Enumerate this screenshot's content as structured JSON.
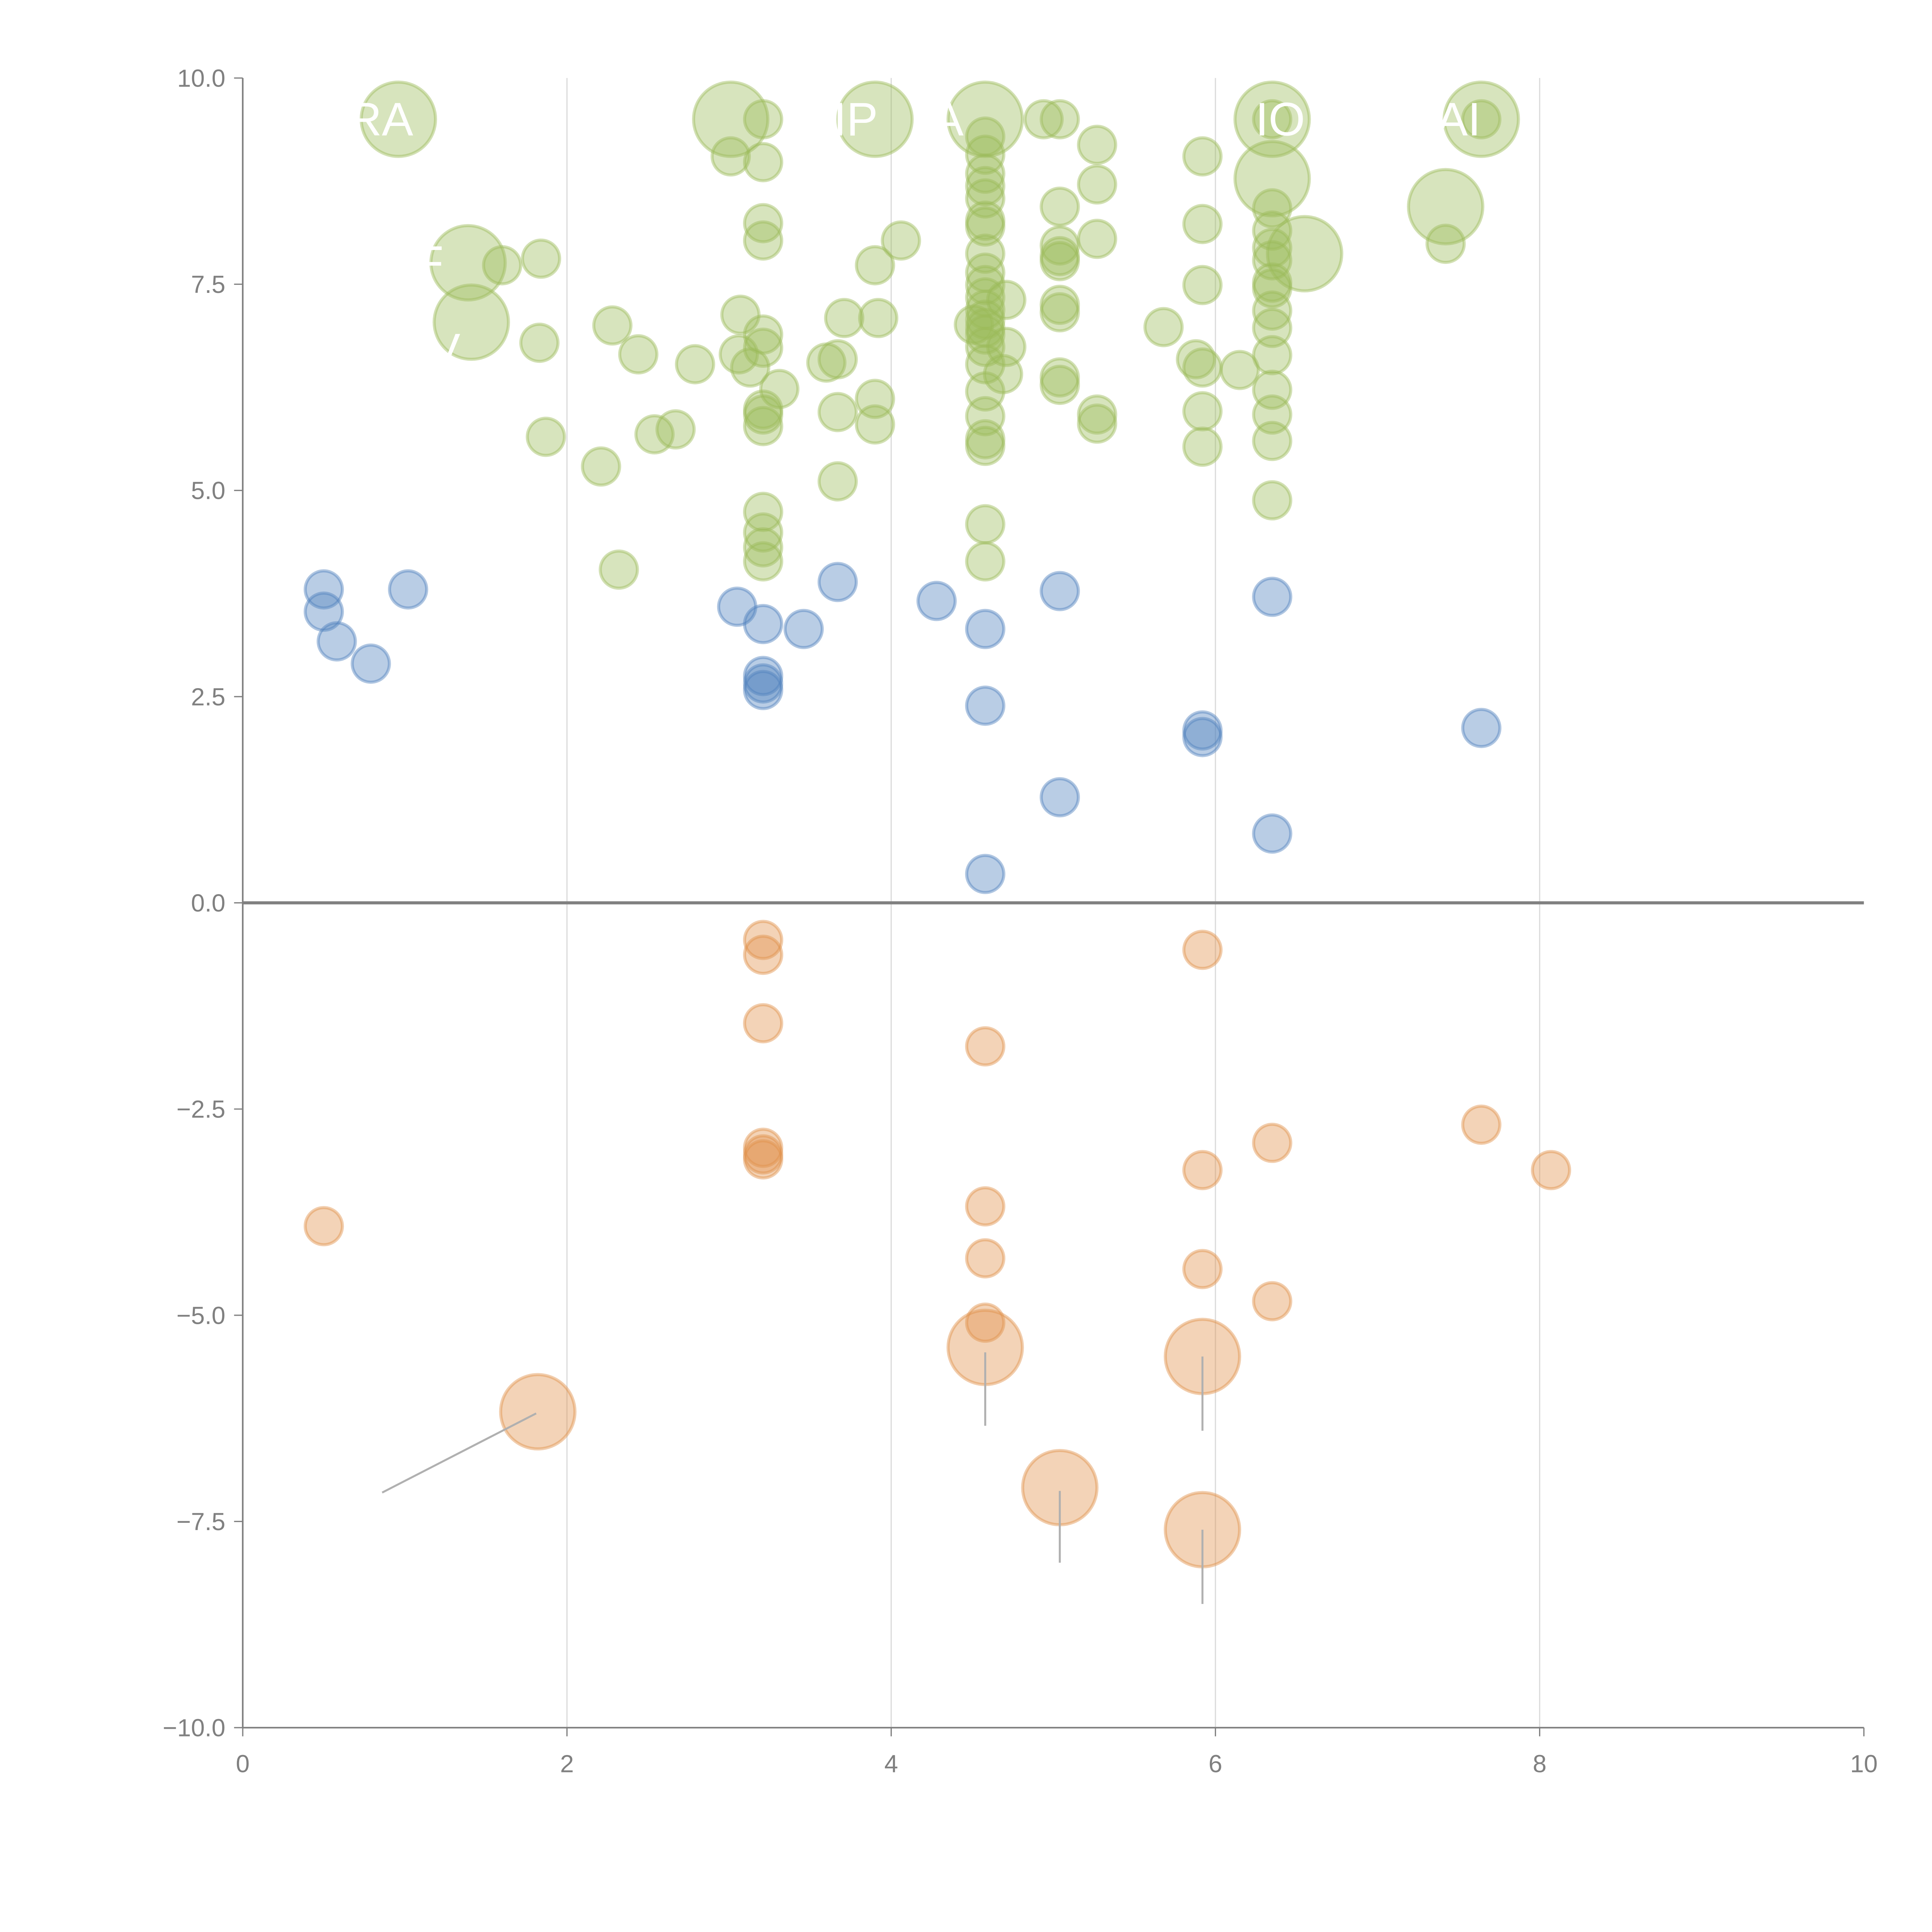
{
  "chart_data": {
    "type": "scatter",
    "title": "",
    "xlabel": "",
    "ylabel": "",
    "xlim": [
      0,
      10
    ],
    "ylim": [
      -10,
      10
    ],
    "xticks": [
      "0",
      "2",
      "4",
      "6",
      "8",
      "10"
    ],
    "yticks": [
      "10.0",
      "7.5",
      "5.0",
      "2.5",
      "0.0",
      "−2.5",
      "−5.0",
      "−7.5",
      "−10.0"
    ],
    "grid": "vertical",
    "colors": {
      "green": "#9bbb59",
      "blue": "#4f81bd",
      "orange": "#e0904a"
    },
    "series": [
      {
        "name": "green",
        "points": [
          [
            0.96,
            9.5,
            4
          ],
          [
            1.39,
            7.76,
            4
          ],
          [
            1.41,
            7.04,
            4
          ],
          [
            3.01,
            9.5,
            4
          ],
          [
            3.9,
            9.5,
            4
          ],
          [
            4.58,
            9.5,
            4
          ],
          [
            6.35,
            9.5,
            4
          ],
          [
            6.35,
            8.78,
            4
          ],
          [
            6.55,
            7.87,
            4
          ],
          [
            7.42,
            8.44,
            4
          ],
          [
            7.64,
            9.5,
            4
          ],
          [
            1.6,
            7.73,
            1
          ],
          [
            1.84,
            7.81,
            1
          ],
          [
            1.83,
            6.79,
            1
          ],
          [
            1.87,
            5.65,
            1
          ],
          [
            2.21,
            5.29,
            1
          ],
          [
            2.28,
            7.0,
            1
          ],
          [
            2.32,
            4.04,
            1
          ],
          [
            2.44,
            6.65,
            1
          ],
          [
            2.54,
            5.68,
            1
          ],
          [
            2.67,
            5.74,
            1
          ],
          [
            2.79,
            6.53,
            1
          ],
          [
            3.01,
            9.05,
            1
          ],
          [
            3.07,
            7.13,
            1
          ],
          [
            3.06,
            6.65,
            1
          ],
          [
            3.13,
            6.49,
            1
          ],
          [
            3.21,
            9.5,
            1
          ],
          [
            3.21,
            8.98,
            1
          ],
          [
            3.21,
            8.24,
            1
          ],
          [
            3.21,
            8.03,
            1
          ],
          [
            3.21,
            6.89,
            1
          ],
          [
            3.21,
            6.73,
            1
          ],
          [
            3.21,
            5.98,
            1
          ],
          [
            3.21,
            5.92,
            1
          ],
          [
            3.21,
            5.78,
            1
          ],
          [
            3.21,
            4.74,
            1
          ],
          [
            3.21,
            4.49,
            1
          ],
          [
            3.21,
            4.31,
            1
          ],
          [
            3.21,
            4.14,
            1
          ],
          [
            3.31,
            6.23,
            1
          ],
          [
            3.6,
            6.55,
            1
          ],
          [
            3.67,
            6.59,
            1
          ],
          [
            3.67,
            5.95,
            1
          ],
          [
            3.67,
            5.11,
            1
          ],
          [
            3.71,
            7.09,
            1
          ],
          [
            3.9,
            7.73,
            1
          ],
          [
            3.9,
            6.11,
            1
          ],
          [
            3.9,
            5.8,
            1
          ],
          [
            3.92,
            7.09,
            1
          ],
          [
            4.06,
            8.03,
            1
          ],
          [
            4.51,
            7.01,
            1
          ],
          [
            4.58,
            9.29,
            1
          ],
          [
            4.58,
            9.07,
            1
          ],
          [
            4.58,
            8.84,
            1
          ],
          [
            4.58,
            8.69,
            1
          ],
          [
            4.58,
            8.54,
            1
          ],
          [
            4.58,
            8.27,
            1
          ],
          [
            4.58,
            8.2,
            1
          ],
          [
            4.58,
            7.87,
            1
          ],
          [
            4.58,
            7.64,
            1
          ],
          [
            4.58,
            7.49,
            1
          ],
          [
            4.58,
            7.34,
            1
          ],
          [
            4.58,
            7.19,
            1
          ],
          [
            4.58,
            7.07,
            1
          ],
          [
            4.58,
            6.97,
            1
          ],
          [
            4.58,
            6.89,
            1
          ],
          [
            4.58,
            6.74,
            1
          ],
          [
            4.58,
            6.53,
            1
          ],
          [
            4.58,
            6.2,
            1
          ],
          [
            4.58,
            5.9,
            1
          ],
          [
            4.58,
            5.62,
            1
          ],
          [
            4.58,
            5.54,
            1
          ],
          [
            4.58,
            4.59,
            1
          ],
          [
            4.58,
            4.14,
            1
          ],
          [
            4.71,
            7.31,
            1
          ],
          [
            4.71,
            6.74,
            1
          ],
          [
            4.69,
            6.41,
            1
          ],
          [
            4.94,
            9.5,
            1
          ],
          [
            5.04,
            9.5,
            1
          ],
          [
            5.04,
            8.44,
            1
          ],
          [
            5.04,
            7.97,
            1
          ],
          [
            5.04,
            7.84,
            1
          ],
          [
            5.04,
            7.78,
            1
          ],
          [
            5.04,
            7.25,
            1
          ],
          [
            5.04,
            7.16,
            1
          ],
          [
            5.04,
            6.37,
            1
          ],
          [
            5.04,
            6.28,
            1
          ],
          [
            5.27,
            9.19,
            1
          ],
          [
            5.27,
            8.71,
            1
          ],
          [
            5.27,
            8.05,
            1
          ],
          [
            5.27,
            5.92,
            1
          ],
          [
            5.27,
            5.81,
            1
          ],
          [
            5.68,
            6.98,
            1
          ],
          [
            5.92,
            9.05,
            1
          ],
          [
            5.92,
            8.23,
            1
          ],
          [
            5.92,
            7.49,
            1
          ],
          [
            5.88,
            6.59,
            1
          ],
          [
            5.92,
            6.49,
            1
          ],
          [
            5.92,
            5.96,
            1
          ],
          [
            5.92,
            5.53,
            1
          ],
          [
            6.15,
            6.46,
            1
          ],
          [
            6.35,
            9.5,
            1
          ],
          [
            6.35,
            8.42,
            1
          ],
          [
            6.35,
            8.15,
            1
          ],
          [
            6.35,
            7.94,
            1
          ],
          [
            6.35,
            7.79,
            1
          ],
          [
            6.35,
            7.52,
            1
          ],
          [
            6.35,
            7.45,
            1
          ],
          [
            6.35,
            7.18,
            1
          ],
          [
            6.35,
            6.97,
            1
          ],
          [
            6.35,
            6.64,
            1
          ],
          [
            6.35,
            6.22,
            1
          ],
          [
            6.35,
            5.92,
            1
          ],
          [
            6.35,
            5.6,
            1
          ],
          [
            6.35,
            4.88,
            1
          ],
          [
            7.42,
            7.99,
            1
          ],
          [
            7.64,
            9.5,
            1
          ]
        ]
      },
      {
        "name": "blue",
        "points": [
          [
            0.5,
            3.8,
            1
          ],
          [
            0.5,
            3.53,
            1
          ],
          [
            0.58,
            3.17,
            1
          ],
          [
            0.79,
            2.9,
            1
          ],
          [
            1.02,
            3.8,
            1
          ],
          [
            3.05,
            3.59,
            1
          ],
          [
            3.21,
            3.38,
            1
          ],
          [
            3.21,
            2.75,
            1
          ],
          [
            3.21,
            2.66,
            1
          ],
          [
            3.21,
            2.58,
            1
          ],
          [
            3.46,
            3.32,
            1
          ],
          [
            3.67,
            3.89,
            1
          ],
          [
            4.28,
            3.66,
            1
          ],
          [
            4.58,
            3.32,
            1
          ],
          [
            4.58,
            2.39,
            1
          ],
          [
            4.58,
            0.35,
            1
          ],
          [
            5.04,
            3.78,
            1
          ],
          [
            5.04,
            1.28,
            1
          ],
          [
            5.92,
            2.09,
            1
          ],
          [
            5.92,
            2.01,
            1
          ],
          [
            6.35,
            3.71,
            1
          ],
          [
            6.35,
            0.84,
            1
          ],
          [
            7.64,
            2.12,
            1
          ]
        ]
      },
      {
        "name": "orange",
        "points": [
          [
            0.5,
            -3.92,
            1
          ],
          [
            3.21,
            -0.45,
            1
          ],
          [
            3.21,
            -0.63,
            1
          ],
          [
            3.21,
            -1.46,
            1
          ],
          [
            3.21,
            -2.97,
            1
          ],
          [
            3.21,
            -3.05,
            1
          ],
          [
            3.21,
            -3.11,
            1
          ],
          [
            4.58,
            -1.74,
            1
          ],
          [
            4.58,
            -3.68,
            1
          ],
          [
            4.58,
            -4.31,
            1
          ],
          [
            4.58,
            -5.09,
            1
          ],
          [
            4.58,
            -5.39,
            4
          ],
          [
            1.82,
            -6.17,
            4
          ],
          [
            5.04,
            -7.09,
            4
          ],
          [
            5.92,
            -5.5,
            4
          ],
          [
            5.92,
            -7.6,
            4
          ],
          [
            5.92,
            -0.57,
            1
          ],
          [
            5.92,
            -3.24,
            1
          ],
          [
            5.92,
            -4.44,
            1
          ],
          [
            6.35,
            -2.91,
            1
          ],
          [
            6.35,
            -4.83,
            1
          ],
          [
            7.64,
            -2.69,
            1
          ],
          [
            8.07,
            -3.24,
            1
          ]
        ]
      }
    ],
    "annotations": [
      {
        "text": "RA",
        "x": 0.85,
        "y": 9.5
      },
      {
        "text": "F",
        "x": 1.15,
        "y": 7.76
      },
      {
        "text": "DIV",
        "x": 1.1,
        "y": 6.7
      },
      {
        "text": "LIP",
        "x": 3.7,
        "y": 9.5
      },
      {
        "text": "A",
        "x": 4.35,
        "y": 9.5
      },
      {
        "text": "IO",
        "x": 6.4,
        "y": 9.5
      },
      {
        "text": "AI",
        "x": 7.5,
        "y": 9.5
      }
    ],
    "leaders": [
      [
        [
          0.86,
          -7.15
        ],
        [
          1.81,
          -6.19
        ]
      ],
      [
        [
          4.58,
          -5.45
        ],
        [
          4.58,
          -6.34
        ]
      ],
      [
        [
          5.92,
          -5.5
        ],
        [
          5.92,
          -6.4
        ]
      ],
      [
        [
          5.04,
          -7.13
        ],
        [
          5.04,
          -8.0
        ]
      ],
      [
        [
          5.92,
          -7.6
        ],
        [
          5.92,
          -8.5
        ]
      ]
    ]
  }
}
